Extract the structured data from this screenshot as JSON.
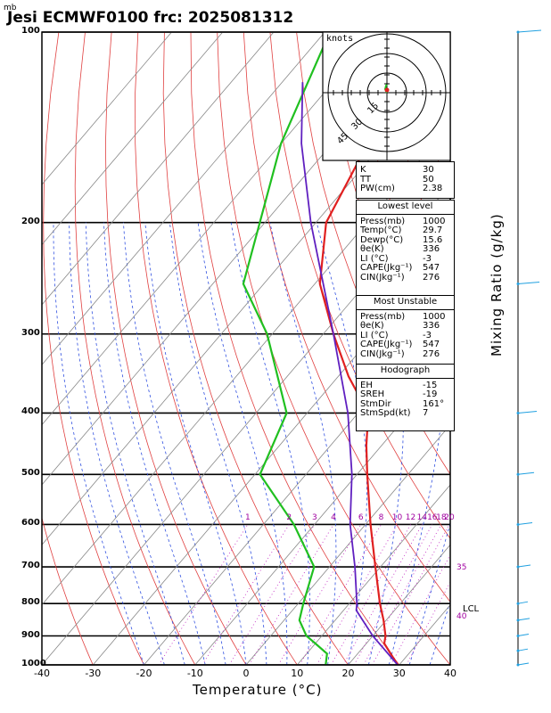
{
  "header": {
    "pressure_unit": "mb",
    "title": "Jesi ECMWF0100  frc: 2025081312"
  },
  "axes": {
    "xlabel": "Temperature (°C)",
    "right_label": "Mixing Ratio (g/kg)",
    "pressure_ticks": [
      "100",
      "200",
      "300",
      "400",
      "500",
      "600",
      "700",
      "800",
      "900",
      "1000"
    ],
    "temperature_ticks": [
      "-40",
      "-30",
      "-20",
      "-10",
      "0",
      "10",
      "20",
      "30",
      "40"
    ],
    "mixing_ratio_labels": [
      "1",
      "2",
      "3",
      "4",
      "6",
      "8",
      "10",
      "12",
      "14",
      "16",
      "18",
      "20",
      "25",
      "30"
    ],
    "side_labels": {
      "35": "35",
      "40": "40"
    },
    "lcl": "LCL"
  },
  "hodograph": {
    "units": "knots",
    "ring_labels": [
      "15",
      "30",
      "45"
    ]
  },
  "indices": {
    "top": [
      {
        "k": "K",
        "v": "30"
      },
      {
        "k": "TT",
        "v": "50"
      },
      {
        "k": "PW(cm)",
        "v": "2.38"
      }
    ],
    "lowest_level": {
      "title": "Lowest level",
      "rows": [
        {
          "k": "Press(mb)",
          "v": "1000"
        },
        {
          "k": "Temp(°C)",
          "v": "29.7"
        },
        {
          "k": "Dewp(°C)",
          "v": "15.6"
        },
        {
          "k": "θe(K)",
          "v": "336"
        },
        {
          "k": "LI (°C)",
          "v": "-3"
        },
        {
          "k": "CAPE(Jkg⁻¹)",
          "v": "547"
        },
        {
          "k": "CIN(Jkg⁻¹)",
          "v": "276"
        }
      ]
    },
    "most_unstable": {
      "title": "Most Unstable",
      "rows": [
        {
          "k": "Press(mb)",
          "v": "1000"
        },
        {
          "k": "θe(K)",
          "v": "336"
        },
        {
          "k": "LI (°C)",
          "v": "-3"
        },
        {
          "k": "CAPE(Jkg⁻¹)",
          "v": "547"
        },
        {
          "k": "CIN(Jkg⁻¹)",
          "v": "276"
        }
      ]
    },
    "hodograph": {
      "title": "Hodograph",
      "rows": [
        {
          "k": "EH",
          "v": "-15"
        },
        {
          "k": "SREH",
          "v": "-19"
        },
        {
          "k": "StmDir",
          "v": "161°"
        },
        {
          "k": "StmSpd(kt)",
          "v": "7"
        }
      ]
    }
  },
  "chart_data": {
    "type": "line",
    "title": "Jesi ECMWF0100  frc: 2025081312",
    "xlabel": "Temperature (°C)",
    "ylabel": "mb",
    "xlim": [
      -40,
      40
    ],
    "ylim": [
      1000,
      100
    ],
    "y_scale": "log",
    "series": [
      {
        "color": "#e02020",
        "points": [
          [
            1000,
            29.7
          ],
          [
            925,
            23.5
          ],
          [
            900,
            22.5
          ],
          [
            850,
            19.5
          ],
          [
            800,
            16
          ],
          [
            700,
            9
          ],
          [
            600,
            1
          ],
          [
            500,
            -8
          ],
          [
            450,
            -13
          ],
          [
            400,
            -18
          ],
          [
            350,
            -28
          ],
          [
            300,
            -38
          ],
          [
            250,
            -49
          ],
          [
            200,
            -58
          ],
          [
            150,
            -63
          ],
          [
            100,
            -67
          ]
        ]
      },
      {
        "color": "#20c020",
        "points": [
          [
            1000,
            15.6
          ],
          [
            960,
            14
          ],
          [
            925,
            10
          ],
          [
            900,
            7
          ],
          [
            850,
            3
          ],
          [
            800,
            1
          ],
          [
            700,
            -3
          ],
          [
            600,
            -14
          ],
          [
            500,
            -29
          ],
          [
            400,
            -34
          ],
          [
            300,
            -51
          ],
          [
            250,
            -64
          ],
          [
            200,
            -71
          ],
          [
            150,
            -80
          ],
          [
            100,
            -89
          ]
        ]
      },
      {
        "color": "#6020c0",
        "points": [
          [
            1000,
            29.7
          ],
          [
            900,
            20
          ],
          [
            820,
            12.5
          ],
          [
            800,
            11.5
          ],
          [
            700,
            5
          ],
          [
            600,
            -3
          ],
          [
            500,
            -11
          ],
          [
            400,
            -22
          ],
          [
            300,
            -38
          ],
          [
            200,
            -61
          ],
          [
            150,
            -76
          ],
          [
            120,
            -86
          ]
        ]
      }
    ],
    "wind_profile_knots": [
      [
        1000,
        6
      ],
      [
        950,
        5
      ],
      [
        900,
        6
      ],
      [
        850,
        7
      ],
      [
        800,
        5
      ],
      [
        700,
        8
      ],
      [
        600,
        10
      ],
      [
        500,
        12
      ],
      [
        400,
        15
      ],
      [
        250,
        18
      ],
      [
        100,
        20
      ]
    ]
  }
}
